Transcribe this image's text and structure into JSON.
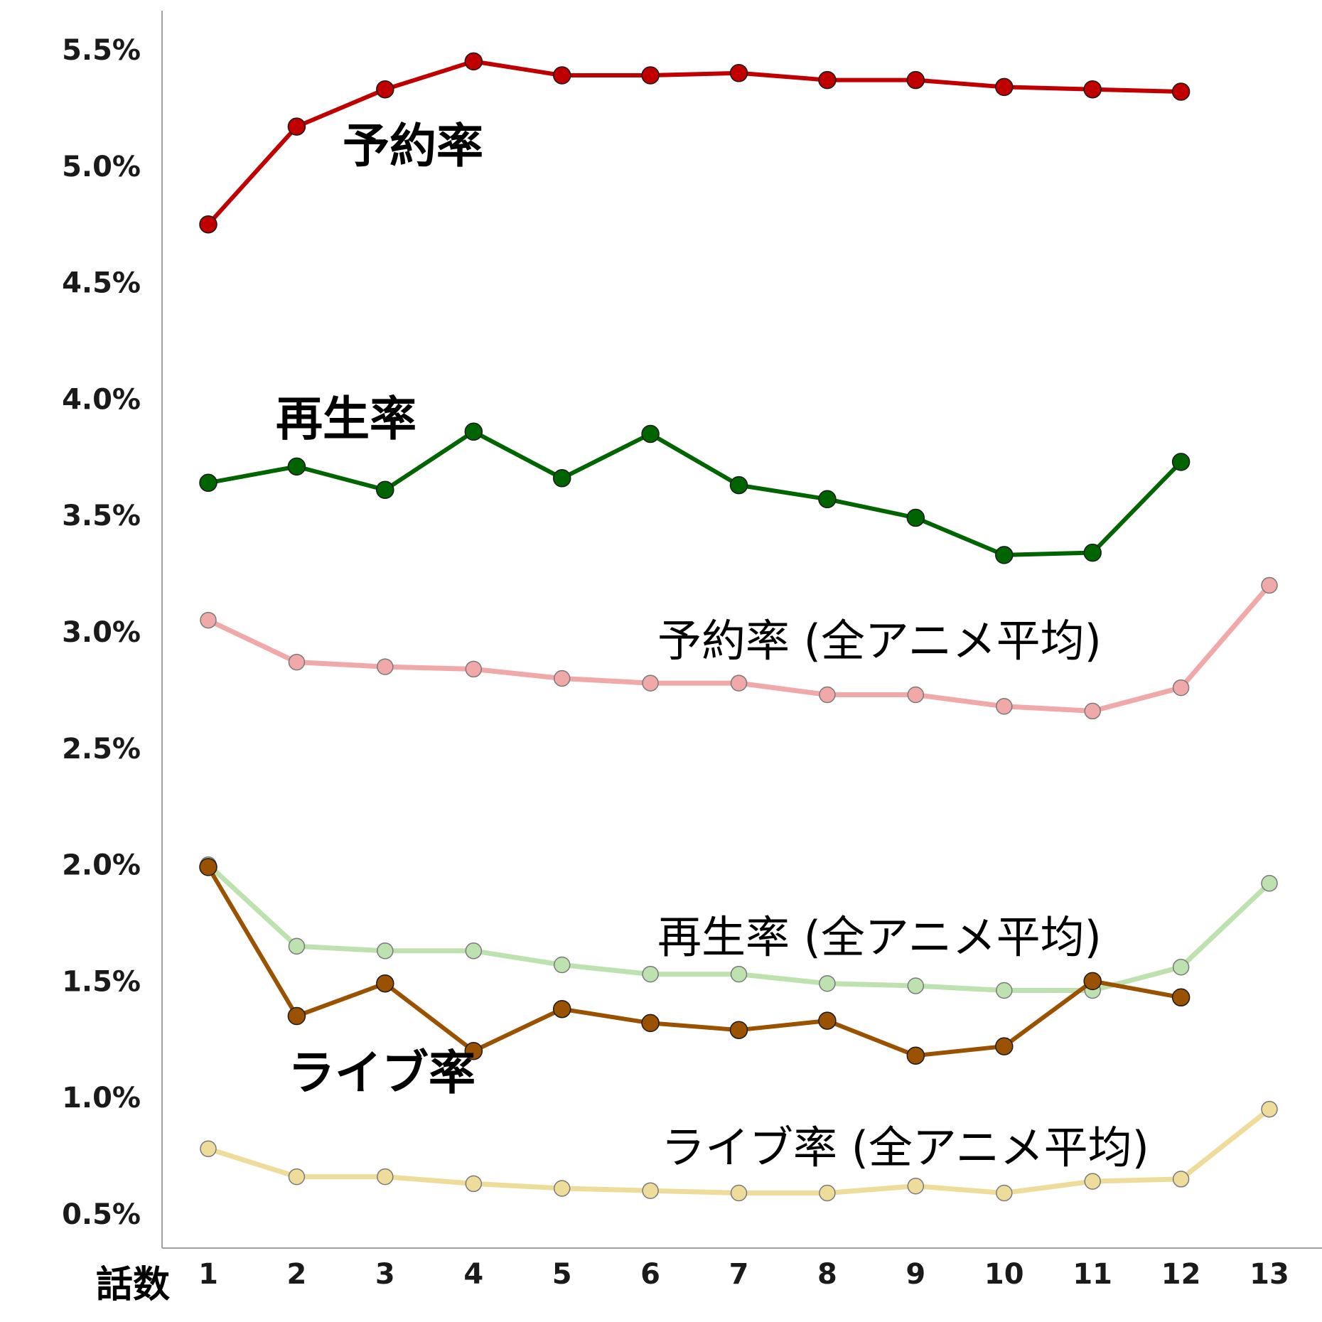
{
  "chart_data": {
    "type": "line",
    "xlabel": "話数",
    "ylabel": "",
    "title": "",
    "x": [
      1,
      2,
      3,
      4,
      5,
      6,
      7,
      8,
      9,
      10,
      11,
      12,
      13
    ],
    "ylim": [
      0.5,
      5.5
    ],
    "yticks": [
      "5.5%",
      "5.0%",
      "4.5%",
      "4.0%",
      "3.5%",
      "3.0%",
      "2.5%",
      "2.0%",
      "1.5%",
      "1.0%",
      "0.5%"
    ],
    "ytick_values": [
      5.5,
      5.0,
      4.5,
      4.0,
      3.5,
      3.0,
      2.5,
      2.0,
      1.5,
      1.0,
      0.5
    ],
    "xticks": [
      "1",
      "2",
      "3",
      "4",
      "5",
      "6",
      "7",
      "8",
      "9",
      "10",
      "11",
      "12",
      "13"
    ],
    "grid": false,
    "legend": "none",
    "series": [
      {
        "name": "予約率",
        "color": "#c00000",
        "style": "bold",
        "values": [
          4.75,
          5.17,
          5.33,
          5.45,
          5.39,
          5.39,
          5.4,
          5.37,
          5.37,
          5.34,
          5.33,
          5.32,
          null
        ]
      },
      {
        "name": "再生率",
        "color": "#006400",
        "style": "bold",
        "values": [
          3.64,
          3.71,
          3.61,
          3.86,
          3.66,
          3.85,
          3.63,
          3.57,
          3.49,
          3.33,
          3.34,
          3.73,
          null
        ]
      },
      {
        "name": "予約率 (全アニメ平均)",
        "color": "#f0a8a8",
        "style": "light",
        "values": [
          3.05,
          2.87,
          2.85,
          2.84,
          2.8,
          2.78,
          2.78,
          2.73,
          2.73,
          2.68,
          2.66,
          2.76,
          3.2
        ]
      },
      {
        "name": "再生率 (全アニメ平均)",
        "color": "#bde2b0",
        "style": "light",
        "values": [
          2.0,
          1.65,
          1.63,
          1.63,
          1.57,
          1.53,
          1.53,
          1.49,
          1.48,
          1.46,
          1.46,
          1.56,
          1.92
        ]
      },
      {
        "name": "ライブ率",
        "color": "#9a5200",
        "style": "bold",
        "values": [
          1.99,
          1.35,
          1.49,
          1.2,
          1.38,
          1.32,
          1.29,
          1.33,
          1.18,
          1.22,
          1.5,
          1.43,
          null
        ]
      },
      {
        "name": "ライブ率 (全アニメ平均)",
        "color": "#eedc9a",
        "style": "light",
        "values": [
          0.78,
          0.66,
          0.66,
          0.63,
          0.61,
          0.6,
          0.59,
          0.59,
          0.62,
          0.59,
          0.64,
          0.65,
          0.95
        ]
      }
    ],
    "annotations": [
      "予約率",
      "再生率",
      "予約率 (全アニメ平均)",
      "再生率 (全アニメ平均)",
      "ライブ率",
      "ライブ率 (全アニメ平均)"
    ]
  }
}
